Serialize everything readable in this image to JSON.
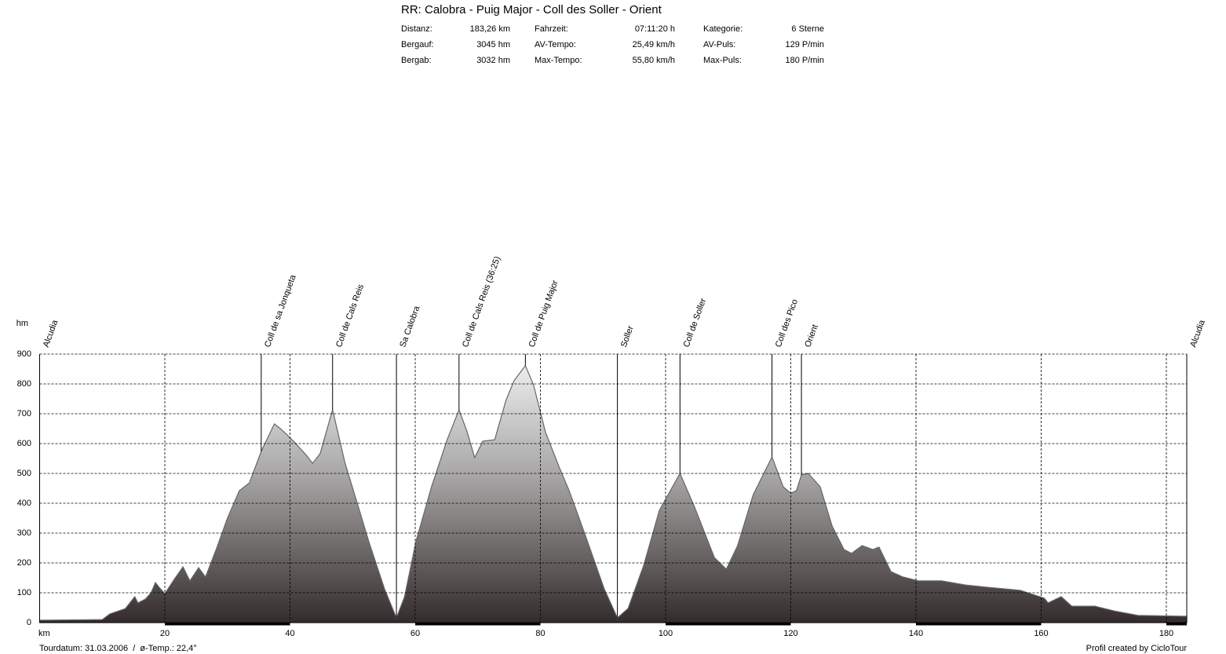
{
  "header": {
    "title": "RR: Calobra - Puig Major - Coll des Soller - Orient",
    "stats": [
      [
        {
          "label": "Distanz:",
          "value": "183,26 km"
        },
        {
          "label": "Fahrzeit:",
          "value": "07:11:20 h"
        },
        {
          "label": "Kategorie:",
          "value": "6 Sterne"
        }
      ],
      [
        {
          "label": "Bergauf:",
          "value": "3045 hm"
        },
        {
          "label": "AV-Tempo:",
          "value": "25,49 km/h"
        },
        {
          "label": "AV-Puls:",
          "value": "129 P/min"
        }
      ],
      [
        {
          "label": "Bergab:",
          "value": "3032 hm"
        },
        {
          "label": "Max-Tempo:",
          "value": "55,80 km/h"
        },
        {
          "label": "Max-Puls:",
          "value": "180 P/min"
        }
      ]
    ]
  },
  "chart_data": {
    "type": "area",
    "xlabel": "km",
    "ylabel": "hm",
    "x": [
      0,
      10,
      11.2,
      13.7,
      15.2,
      15.7,
      16.9,
      17.8,
      18.5,
      19.1,
      20,
      21.5,
      22.9,
      24,
      25.4,
      26.5,
      28.2,
      30,
      31.9,
      33.5,
      35.4,
      37.5,
      38.3,
      39.4,
      40.7,
      42.6,
      43.6,
      44.8,
      46.8,
      48.8,
      50.7,
      52.6,
      55.1,
      57,
      58.3,
      60.1,
      62.6,
      65.1,
      67,
      68.3,
      69.5,
      70.8,
      72.7,
      74.5,
      75.8,
      77.6,
      78.9,
      80.8,
      83,
      84.6,
      87.1,
      90.2,
      92.3,
      94,
      96.5,
      99,
      102.3,
      104.6,
      107.8,
      109.7,
      111.5,
      114,
      117,
      118.8,
      120,
      120.9,
      121.7,
      122.8,
      124.7,
      126.6,
      128.5,
      129.7,
      131.4,
      133.1,
      134.1,
      136,
      137.9,
      140.4,
      144.1,
      147.9,
      151.7,
      156.7,
      160.5,
      161.1,
      163.2,
      164.9,
      168.6,
      171.7,
      175.5,
      183.26
    ],
    "values": [
      8,
      10,
      29,
      47,
      87,
      66,
      79,
      100,
      134,
      118,
      97,
      145,
      187,
      140,
      184,
      153,
      245,
      350,
      442,
      468,
      574,
      666,
      653,
      632,
      605,
      561,
      534,
      566,
      713,
      534,
      403,
      271,
      113,
      16,
      87,
      271,
      455,
      613,
      713,
      639,
      553,
      608,
      613,
      745,
      811,
      861,
      797,
      639,
      521,
      442,
      297,
      113,
      16,
      47,
      192,
      376,
      500,
      389,
      218,
      179,
      258,
      429,
      555,
      455,
      434,
      442,
      495,
      500,
      455,
      324,
      245,
      232,
      258,
      245,
      253,
      171,
      153,
      140,
      140,
      126,
      118,
      108,
      82,
      66,
      87,
      55,
      55,
      39,
      24,
      21
    ],
    "xlim": [
      0,
      183.26
    ],
    "ylim": [
      0,
      900
    ],
    "xticks": [
      20,
      40,
      60,
      80,
      100,
      120,
      140,
      160,
      180
    ],
    "yticks": [
      0,
      100,
      200,
      300,
      400,
      500,
      600,
      700,
      800,
      900
    ],
    "grid": true,
    "color": "#666666",
    "annotations": [
      {
        "label": "Alcudia",
        "x": 0
      },
      {
        "label": "Coll de sa Jonqueta",
        "x": 35.4
      },
      {
        "label": "Coll de Cals Reis",
        "x": 46.8
      },
      {
        "label": "Sa Calobra",
        "x": 57
      },
      {
        "label": "Coll de Cals Reis (36:25)",
        "x": 67
      },
      {
        "label": "Coll de Puig Major",
        "x": 77.6
      },
      {
        "label": "Soller",
        "x": 92.3
      },
      {
        "label": "Coll de Soller",
        "x": 102.3
      },
      {
        "label": "Coll des Pico",
        "x": 117
      },
      {
        "label": "Orient",
        "x": 121.7
      },
      {
        "label": "Alcudia",
        "x": 183.26
      }
    ]
  },
  "footer": {
    "left": "Tourdatum: 31.03.2006  /  ø-Temp.: 22,4°",
    "right": "Profil created by CicloTour"
  }
}
